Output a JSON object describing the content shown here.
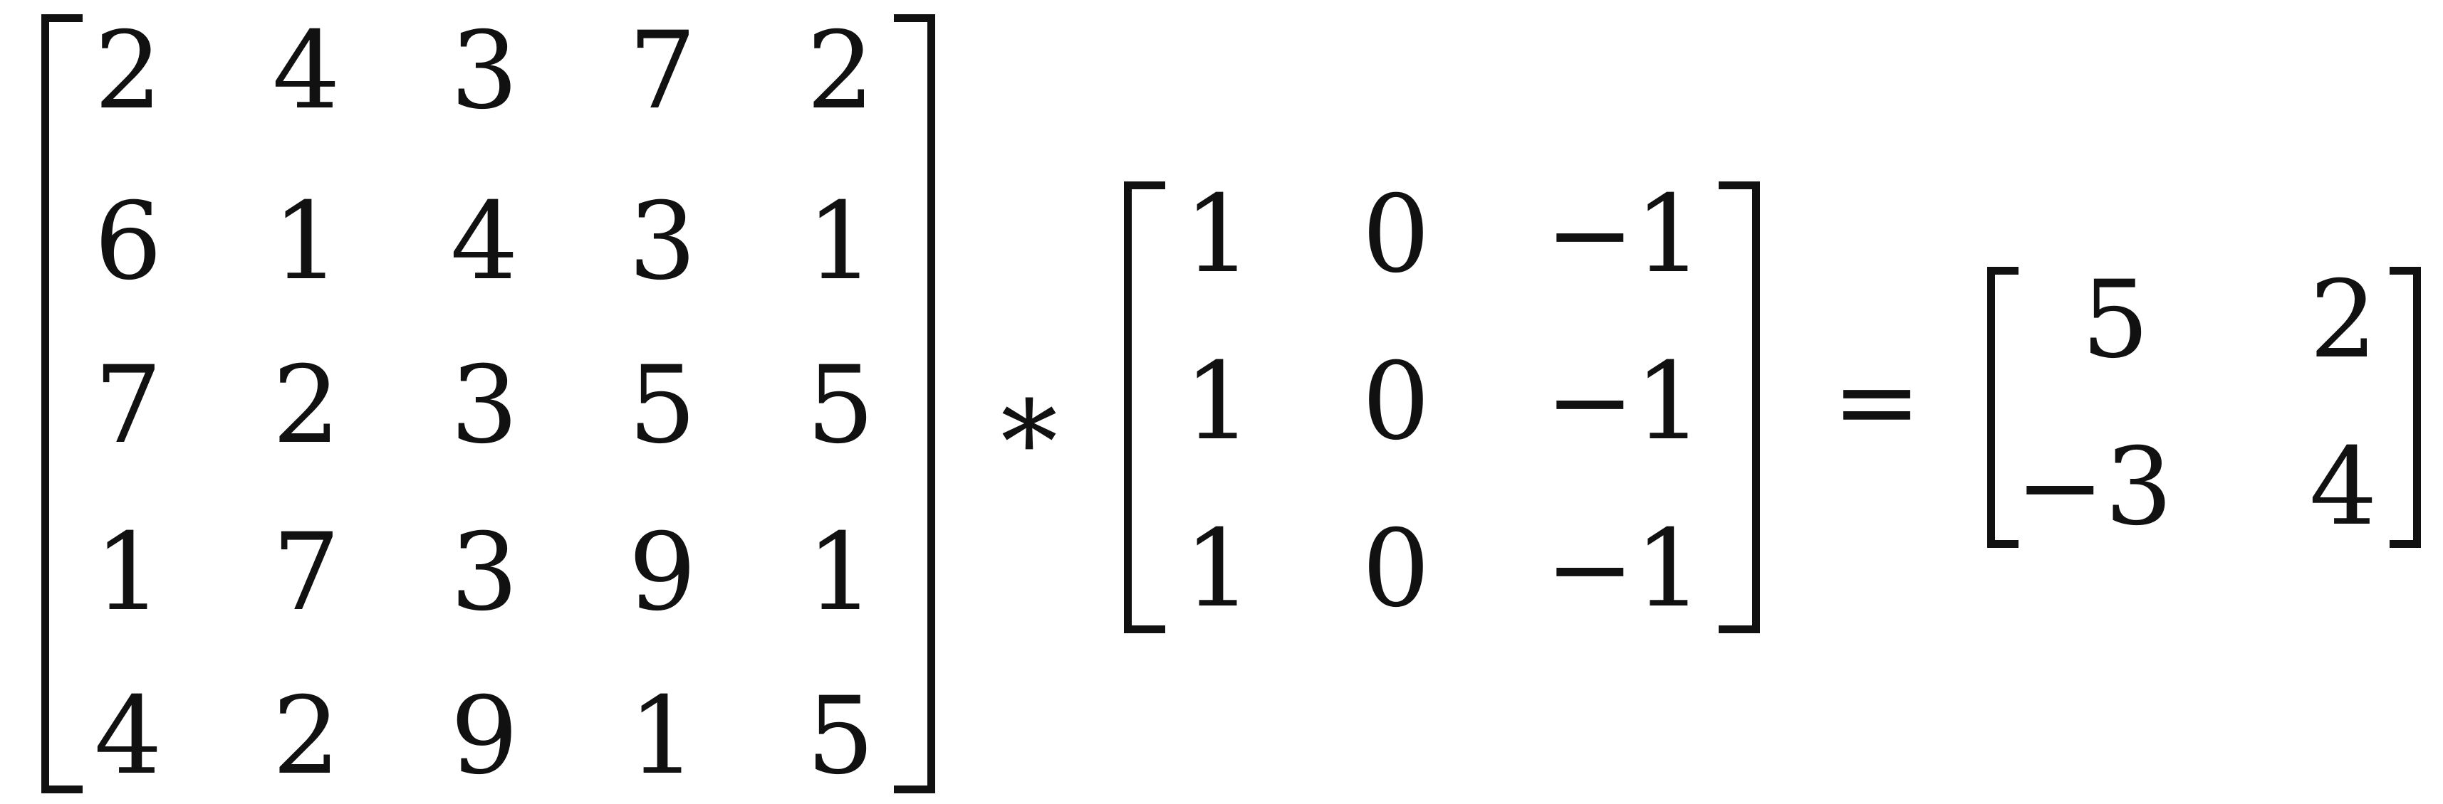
{
  "equation": {
    "input_matrix": [
      [
        "2",
        "4",
        "3",
        "7",
        "2"
      ],
      [
        "6",
        "1",
        "4",
        "3",
        "1"
      ],
      [
        "7",
        "2",
        "3",
        "5",
        "5"
      ],
      [
        "1",
        "7",
        "3",
        "9",
        "1"
      ],
      [
        "4",
        "2",
        "9",
        "1",
        "5"
      ]
    ],
    "operator": "∗",
    "kernel_matrix": [
      [
        "1",
        "0",
        "−1"
      ],
      [
        "1",
        "0",
        "−1"
      ],
      [
        "1",
        "0",
        "−1"
      ]
    ],
    "equals": "=",
    "result_matrix": [
      [
        "5",
        "2"
      ],
      [
        "−3",
        "4"
      ]
    ]
  }
}
